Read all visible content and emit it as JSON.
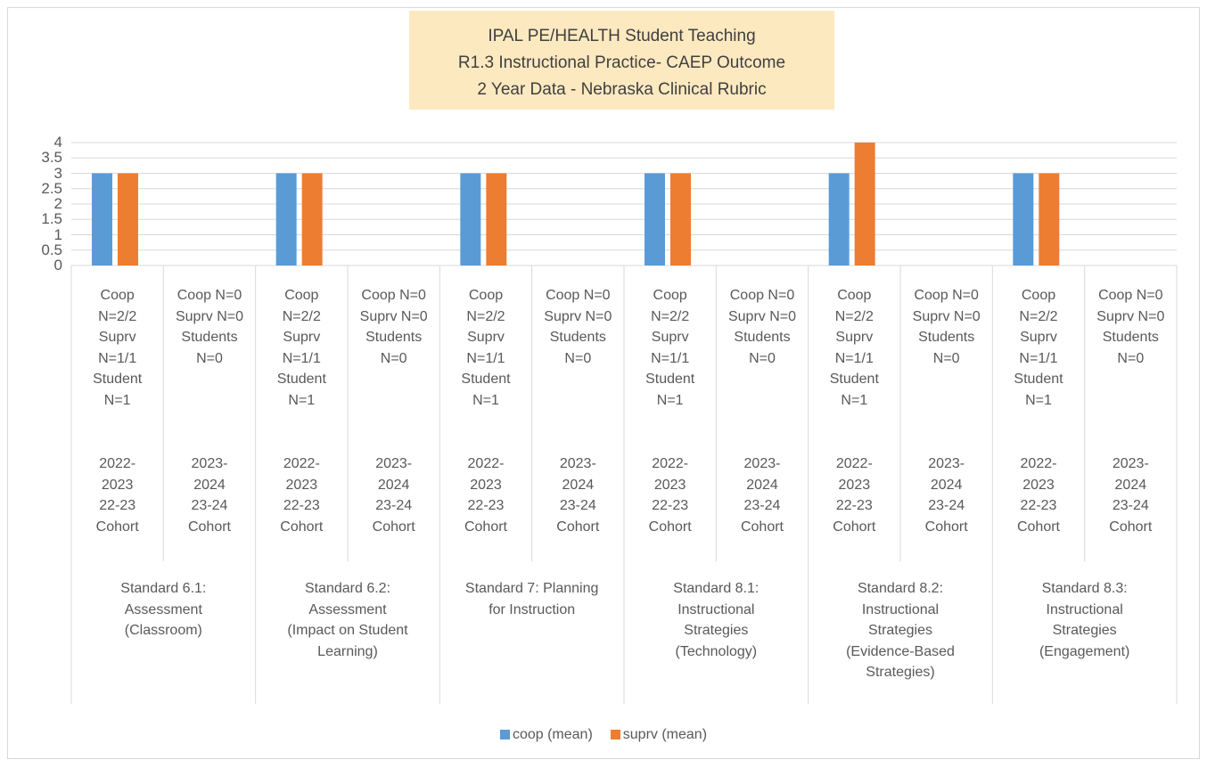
{
  "chart_data": {
    "type": "bar",
    "title": "IPAL PE/HEALTH  Student Teaching\nR1.3 Instructional Practice- CAEP Outcome\n2 Year Data - Nebraska Clinical Rubric",
    "categories": [
      "Coop\nN=2/2\nSuprv\nN=1/1\nStudent\nN=1",
      "Coop N=0\nSuprv N=0\nStudents\nN=0",
      "Coop\nN=2/2\nSuprv\nN=1/1\nStudent\nN=1",
      "Coop N=0\nSuprv N=0\nStudents\nN=0",
      "Coop\nN=2/2\nSuprv\nN=1/1\nStudent\nN=1",
      "Coop N=0\nSuprv N=0\nStudents\nN=0",
      "Coop\nN=2/2\nSuprv\nN=1/1\nStudent\nN=1",
      "Coop N=0\nSuprv N=0\nStudents\nN=0",
      "Coop\nN=2/2\nSuprv\nN=1/1\nStudent\nN=1",
      "Coop N=0\nSuprv N=0\nStudents\nN=0",
      "Coop\nN=2/2\nSuprv\nN=1/1\nStudent\nN=1",
      "Coop N=0\nSuprv N=0\nStudents\nN=0"
    ],
    "category_periods": [
      "2022-\n2023\n22-23\nCohort",
      "2023-\n2024\n23-24\nCohort",
      "2022-\n2023\n22-23\nCohort",
      "2023-\n2024\n23-24\nCohort",
      "2022-\n2023\n22-23\nCohort",
      "2023-\n2024\n23-24\nCohort",
      "2022-\n2023\n22-23\nCohort",
      "2023-\n2024\n23-24\nCohort",
      "2022-\n2023\n22-23\nCohort",
      "2023-\n2024\n23-24\nCohort",
      "2022-\n2023\n22-23\nCohort",
      "2023-\n2024\n23-24\nCohort"
    ],
    "groups": [
      "Standard 6.1:\nAssessment\n(Classroom)",
      "Standard 6.2:\nAssessment\n(Impact on Student\nLearning)",
      "Standard 7: Planning\nfor Instruction",
      "Standard 8.1:\nInstructional\nStrategies\n(Technology)",
      "Standard 8.2:\nInstructional\nStrategies\n(Evidence-Based\nStrategies)",
      "Standard 8.3:\nInstructional\nStrategies\n(Engagement)"
    ],
    "series": [
      {
        "name": "coop (mean)",
        "color": "#5b9bd5",
        "values": [
          3,
          null,
          3,
          null,
          3,
          null,
          3,
          null,
          3,
          null,
          3,
          null
        ]
      },
      {
        "name": "suprv (mean)",
        "color": "#ed7d31",
        "values": [
          3,
          null,
          3,
          null,
          3,
          null,
          3,
          null,
          4,
          null,
          3,
          null
        ]
      }
    ],
    "ylim": [
      0,
      4
    ],
    "yticks": [
      0,
      0.5,
      1,
      1.5,
      2,
      2.5,
      3,
      3.5,
      4
    ],
    "grid": true,
    "legend": "bottom"
  }
}
